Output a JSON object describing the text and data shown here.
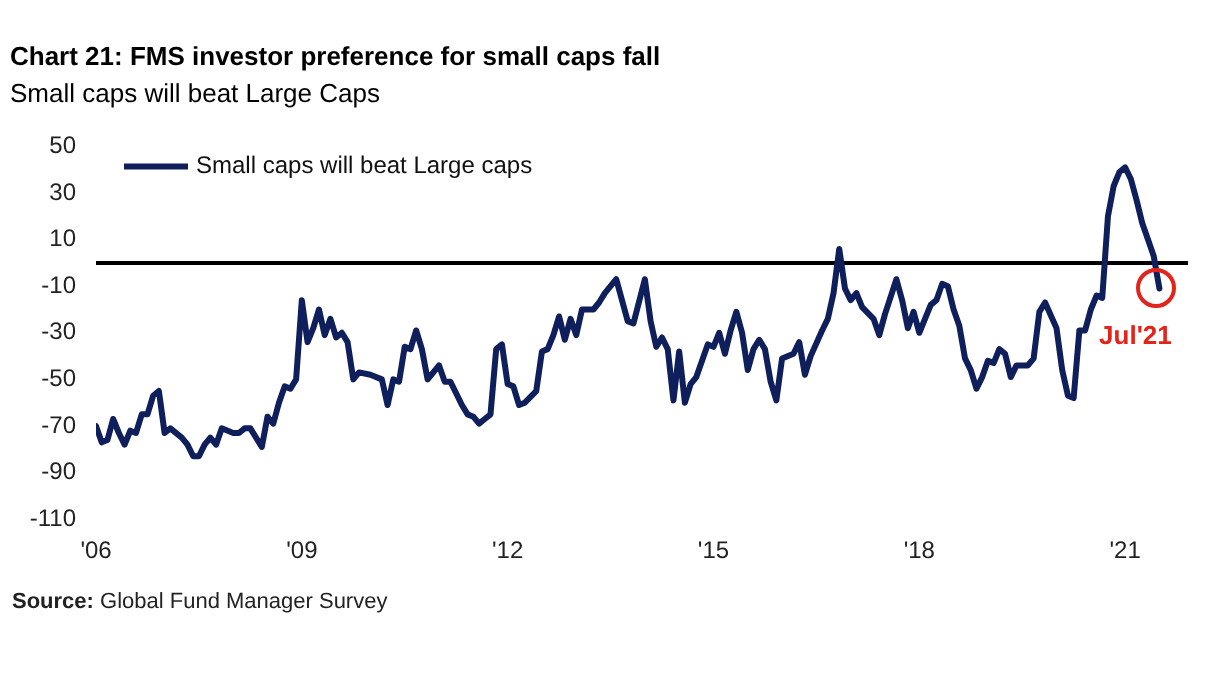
{
  "chart_data": {
    "type": "line",
    "title": "Chart 21: FMS investor preference for small caps fall",
    "subtitle": "Small caps will beat Large Caps",
    "x": [
      "2006-01",
      "2006-02",
      "2006-03",
      "2006-04",
      "2006-05",
      "2006-06",
      "2006-07",
      "2006-08",
      "2006-09",
      "2006-10",
      "2006-11",
      "2006-12",
      "2007-01",
      "2007-02",
      "2007-04",
      "2007-05",
      "2007-06",
      "2007-07",
      "2007-08",
      "2007-09",
      "2007-10",
      "2007-11",
      "2008-01",
      "2008-02",
      "2008-03",
      "2008-04",
      "2008-06",
      "2008-07",
      "2008-08",
      "2008-09",
      "2008-10",
      "2008-11",
      "2008-12",
      "2009-01",
      "2009-02",
      "2009-03",
      "2009-04",
      "2009-05",
      "2009-06",
      "2009-07",
      "2009-08",
      "2009-09",
      "2009-10",
      "2009-11",
      "2010-01",
      "2010-03",
      "2010-04",
      "2010-05",
      "2010-06",
      "2010-07",
      "2010-08",
      "2010-09",
      "2010-10",
      "2010-11",
      "2011-01",
      "2011-02",
      "2011-03",
      "2011-05",
      "2011-06",
      "2011-07",
      "2011-08",
      "2011-09",
      "2011-10",
      "2011-11",
      "2011-12",
      "2012-01",
      "2012-02",
      "2012-03",
      "2012-04",
      "2012-06",
      "2012-07",
      "2012-08",
      "2012-09",
      "2012-10",
      "2012-11",
      "2012-12",
      "2013-01",
      "2013-02",
      "2013-04",
      "2013-05",
      "2013-06",
      "2013-08",
      "2013-10",
      "2013-11",
      "2014-01",
      "2014-02",
      "2014-03",
      "2014-04",
      "2014-05",
      "2014-06",
      "2014-07",
      "2014-08",
      "2014-09",
      "2014-10",
      "2014-11",
      "2014-12",
      "2015-01",
      "2015-02",
      "2015-03",
      "2015-04",
      "2015-05",
      "2015-06",
      "2015-07",
      "2015-08",
      "2015-09",
      "2015-10",
      "2015-11",
      "2015-12",
      "2016-01",
      "2016-03",
      "2016-04",
      "2016-05",
      "2016-06",
      "2016-08",
      "2016-09",
      "2016-10",
      "2016-11",
      "2016-12",
      "2017-01",
      "2017-02",
      "2017-03",
      "2017-05",
      "2017-06",
      "2017-07",
      "2017-09",
      "2017-10",
      "2017-11",
      "2017-12",
      "2018-01",
      "2018-02",
      "2018-03",
      "2018-04",
      "2018-05",
      "2018-06",
      "2018-07",
      "2018-08",
      "2018-09",
      "2018-10",
      "2018-11",
      "2018-12",
      "2019-01",
      "2019-02",
      "2019-03",
      "2019-04",
      "2019-05",
      "2019-06",
      "2019-08",
      "2019-09",
      "2019-10",
      "2019-11",
      "2020-01",
      "2020-02",
      "2020-03",
      "2020-04",
      "2020-05",
      "2020-06",
      "2020-07",
      "2020-08",
      "2020-09",
      "2020-10",
      "2020-11",
      "2020-12",
      "2021-01",
      "2021-02",
      "2021-03",
      "2021-04",
      "2021-05",
      "2021-06",
      "2021-07"
    ],
    "series": [
      {
        "name": "Small caps will beat Large caps",
        "color": "#0f1f5c",
        "values": [
          -70,
          -77,
          -76,
          -67,
          -73,
          -78,
          -72,
          -73,
          -65,
          -65,
          -57,
          -55,
          -73,
          -71,
          -75,
          -78,
          -83,
          -83,
          -78,
          -75,
          -78,
          -71,
          -73,
          -73,
          -71,
          -71,
          -79,
          -66,
          -69,
          -60,
          -53,
          -54,
          -50,
          -16,
          -34,
          -28,
          -20,
          -31,
          -24,
          -32,
          -30,
          -34,
          -50,
          -47,
          -48,
          -50,
          -61,
          -50,
          -51,
          -36,
          -37,
          -29,
          -37,
          -50,
          -44,
          -51,
          -51,
          -61,
          -65,
          -66,
          -69,
          -67,
          -65,
          -37,
          -35,
          -52,
          -53,
          -61,
          -60,
          -55,
          -38,
          -37,
          -31,
          -23,
          -33,
          -24,
          -31,
          -20,
          -20,
          -17,
          -13,
          -7,
          -25,
          -26,
          -7,
          -25,
          -36,
          -32,
          -37,
          -59,
          -38,
          -60,
          -52,
          -49,
          -42,
          -35,
          -36,
          -30,
          -39,
          -29,
          -21,
          -30,
          -46,
          -37,
          -33,
          -37,
          -51,
          -59,
          -41,
          -39,
          -34,
          -48,
          -40,
          -29,
          -24,
          -13,
          6,
          -11,
          -16,
          -13,
          -19,
          -24,
          -31,
          -22,
          -7,
          -16,
          -28,
          -21,
          -30,
          -24,
          -18,
          -16,
          -9,
          -10,
          -20,
          -27,
          -41,
          -46,
          -54,
          -49,
          -42,
          -43,
          -37,
          -39,
          -49,
          -44,
          -44,
          -41,
          -21,
          -17,
          -28,
          -46,
          -57,
          -58,
          -29,
          -29,
          -20,
          -14,
          -15,
          20,
          33,
          39,
          41,
          36,
          27,
          17,
          10,
          3,
          -11
        ]
      }
    ],
    "xlim": [
      "2006-01",
      "2021-12"
    ],
    "xticks": [
      {
        "value": "2006-01",
        "label": "'06"
      },
      {
        "value": "2009-01",
        "label": "'09"
      },
      {
        "value": "2012-01",
        "label": "'12"
      },
      {
        "value": "2015-01",
        "label": "'15"
      },
      {
        "value": "2018-01",
        "label": "'18"
      },
      {
        "value": "2021-01",
        "label": "'21"
      }
    ],
    "ylim": [
      -110,
      50
    ],
    "yticks": [
      -110,
      -90,
      -70,
      -50,
      -30,
      -10,
      10,
      30,
      50
    ],
    "ref_lines": [
      {
        "axis": "y",
        "value": 0,
        "color": "#000000"
      }
    ],
    "legend": "top left",
    "annotations": [
      "Source: Global Fund Manager Survey",
      {
        "text": "Jul'21",
        "x": "2021-07",
        "y": -11
      }
    ]
  }
}
